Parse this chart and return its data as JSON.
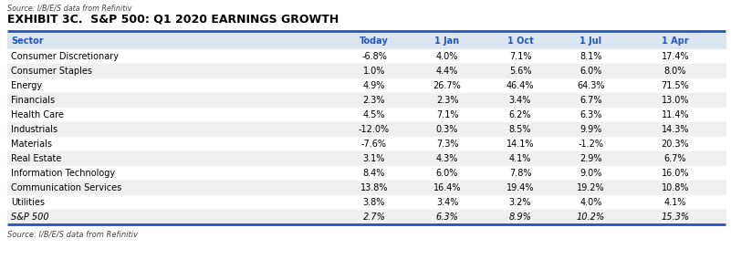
{
  "title": "EXHIBIT 3C.  S&P 500: Q1 2020 EARNINGS GROWTH",
  "source_top": "Source: I/B/E/S data from Refinitiv",
  "source_bottom": "Source: I/B/E/S data from Refinitiv",
  "columns": [
    "Sector",
    "Today",
    "1 Jan",
    "1 Oct",
    "1 Jul",
    "1 Apr"
  ],
  "rows": [
    [
      "Consumer Discretionary",
      "-6.8%",
      "4.0%",
      "7.1%",
      "8.1%",
      "17.4%"
    ],
    [
      "Consumer Staples",
      "1.0%",
      "4.4%",
      "5.6%",
      "6.0%",
      "8.0%"
    ],
    [
      "Energy",
      "4.9%",
      "26.7%",
      "46.4%",
      "64.3%",
      "71.5%"
    ],
    [
      "Financials",
      "2.3%",
      "2.3%",
      "3.4%",
      "6.7%",
      "13.0%"
    ],
    [
      "Health Care",
      "4.5%",
      "7.1%",
      "6.2%",
      "6.3%",
      "11.4%"
    ],
    [
      "Industrials",
      "-12.0%",
      "0.3%",
      "8.5%",
      "9.9%",
      "14.3%"
    ],
    [
      "Materials",
      "-7.6%",
      "7.3%",
      "14.1%",
      "-1.2%",
      "20.3%"
    ],
    [
      "Real Estate",
      "3.1%",
      "4.3%",
      "4.1%",
      "2.9%",
      "6.7%"
    ],
    [
      "Information Technology",
      "8.4%",
      "6.0%",
      "7.8%",
      "9.0%",
      "16.0%"
    ],
    [
      "Communication Services",
      "13.8%",
      "16.4%",
      "19.4%",
      "19.2%",
      "10.8%"
    ],
    [
      "Utilities",
      "3.8%",
      "3.4%",
      "3.2%",
      "4.0%",
      "4.1%"
    ],
    [
      "S&P 500",
      "2.7%",
      "6.3%",
      "8.9%",
      "10.2%",
      "15.3%"
    ]
  ],
  "header_bg": "#dce6f1",
  "alt_row_bg": "#efefef",
  "white_row_bg": "#ffffff",
  "blue_line_color": "#2255bb",
  "header_text_color": "#2255bb",
  "body_text_color": "#000000",
  "title_color": "#000000",
  "source_color": "#444444"
}
